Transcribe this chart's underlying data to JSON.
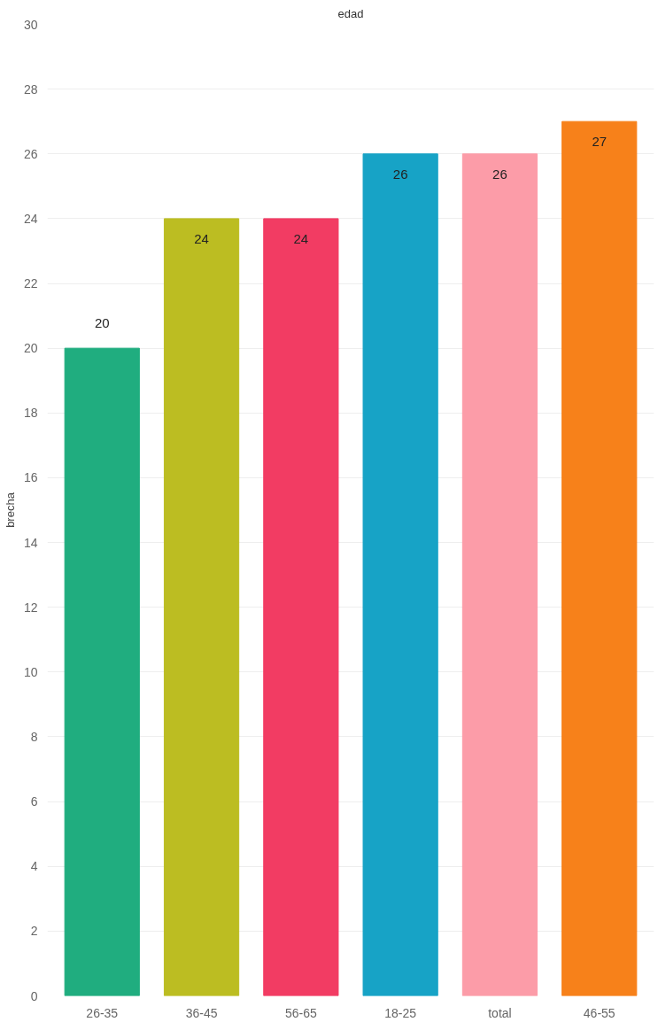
{
  "chart_data": {
    "type": "bar",
    "title": "edad",
    "ylabel": "brecha",
    "categories": [
      "26-35",
      "36-45",
      "56-65",
      "18-25",
      "total",
      "46-55"
    ],
    "values": [
      20,
      24,
      24,
      26,
      26,
      27
    ],
    "colors": [
      "#20ad7f",
      "#bcbd22",
      "#f23c63",
      "#17a3c6",
      "#fc9ca8",
      "#f7811a"
    ],
    "ylim": [
      0,
      30
    ],
    "yticks": [
      0,
      2,
      4,
      6,
      8,
      10,
      12,
      14,
      16,
      18,
      20,
      22,
      24,
      26,
      28,
      30
    ],
    "grid": "y",
    "data_labels": true
  }
}
